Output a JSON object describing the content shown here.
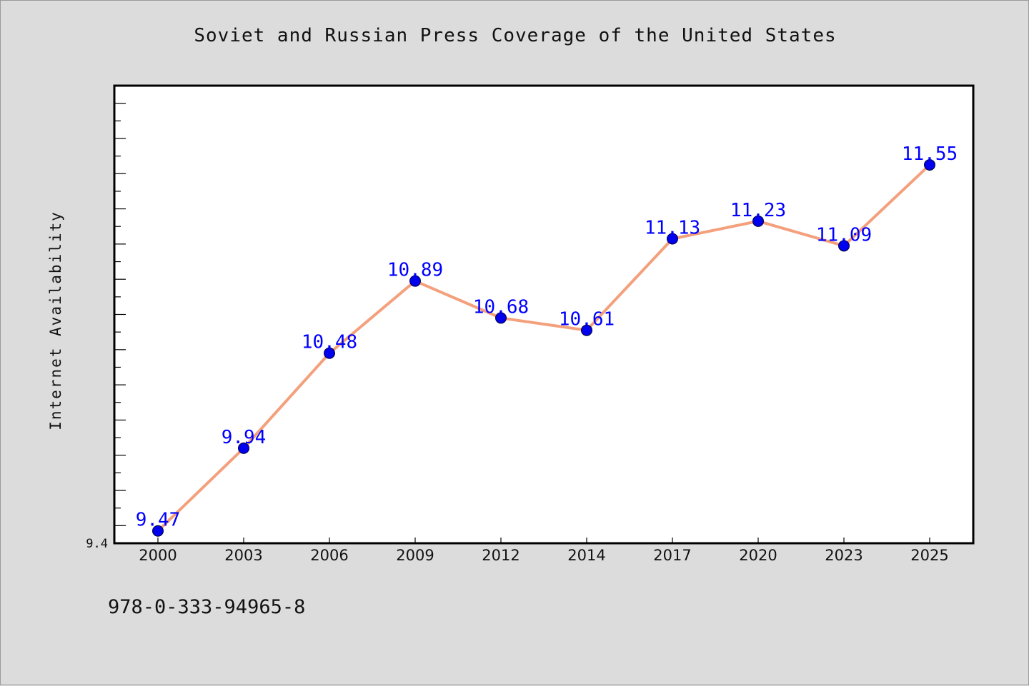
{
  "title": "Soviet and Russian Press Coverage of the United States",
  "footnote": "978-0-333-94965-8",
  "colors": {
    "background": "#dcdcdc",
    "plot_background": "#ffffff",
    "line": "#f4a07c",
    "marker": "#0000ee",
    "data_label": "#0000ff"
  },
  "chart_data": {
    "type": "line",
    "title": "Soviet and Russian Press Coverage of the United States",
    "xlabel": "",
    "ylabel": "Internet Availability",
    "categories": [
      "2000",
      "2003",
      "2006",
      "2009",
      "2012",
      "2014",
      "2017",
      "2020",
      "2023",
      "2025"
    ],
    "series": [
      {
        "values": [
          9.47,
          9.94,
          10.48,
          10.89,
          10.68,
          10.61,
          11.13,
          11.23,
          11.09,
          11.55
        ]
      }
    ],
    "data_labels": [
      "9.47",
      "9.94",
      "10.48",
      "10.89",
      "10.68",
      "10.61",
      "11.13",
      "11.23",
      "11.09",
      "11.55"
    ],
    "ylim": [
      9.4,
      12.0
    ],
    "ytick_labels": [
      "9.4"
    ],
    "grid": false,
    "legend": "none"
  }
}
